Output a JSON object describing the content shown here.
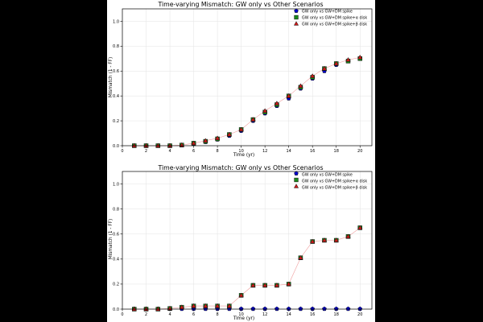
{
  "figure": {
    "background": "#ffffff",
    "outer_background": "#000000"
  },
  "colors": {
    "series": [
      "#0000cc",
      "#1a8a1a",
      "#cc1a1a"
    ],
    "edge": "#111111",
    "grid": "#e3e3e3",
    "line": "#f0a0a0"
  },
  "chart_data": [
    {
      "type": "scatter",
      "title": "Time-varying Mismatch: GW only vs Other Scenarios",
      "xlabel": "Time (yr)",
      "ylabel": "Mismatch (1 - FF)",
      "xlim": [
        0,
        21
      ],
      "ylim": [
        0,
        1.1
      ],
      "xticks": [
        0,
        2,
        4,
        6,
        8,
        10,
        12,
        14,
        16,
        18,
        20
      ],
      "yticks": [
        0.0,
        0.2,
        0.4,
        0.6,
        0.8,
        1.0
      ],
      "grid": true,
      "legend_position": "top-right",
      "x": [
        1,
        2,
        3,
        4,
        5,
        6,
        7,
        8,
        9,
        10,
        11,
        12,
        13,
        14,
        15,
        16,
        17,
        18,
        19,
        20
      ],
      "series": [
        {
          "name": "GW only vs GW+DM spike",
          "marker": "pentagon",
          "values": [
            0.0,
            0.0,
            0.0,
            0.0,
            0.005,
            0.015,
            0.03,
            0.05,
            0.08,
            0.12,
            0.2,
            0.26,
            0.32,
            0.38,
            0.46,
            0.54,
            0.6,
            0.65,
            0.68,
            0.7
          ]
        },
        {
          "name": "GW only vs GW+DM spike+α disk",
          "marker": "square",
          "values": [
            0.0,
            0.0,
            0.0,
            0.0,
            0.005,
            0.02,
            0.035,
            0.055,
            0.09,
            0.13,
            0.21,
            0.27,
            0.33,
            0.4,
            0.47,
            0.55,
            0.62,
            0.66,
            0.68,
            0.7
          ]
        },
        {
          "name": "GW only vs GW+DM spike+β disk",
          "marker": "triangle",
          "values": [
            0.0,
            0.0,
            0.0,
            0.0,
            0.005,
            0.02,
            0.04,
            0.06,
            0.09,
            0.13,
            0.21,
            0.28,
            0.34,
            0.4,
            0.48,
            0.56,
            0.62,
            0.66,
            0.69,
            0.71
          ]
        }
      ]
    },
    {
      "type": "scatter",
      "title": "Time-varying Mismatch: GW only vs Other Scenarios",
      "xlabel": "Time (yr)",
      "ylabel": "Mismatch (1 - FF)",
      "xlim": [
        0,
        21
      ],
      "ylim": [
        0,
        1.1
      ],
      "xticks": [
        0,
        2,
        4,
        6,
        8,
        10,
        12,
        14,
        16,
        18,
        20
      ],
      "yticks": [
        0.0,
        0.2,
        0.4,
        0.6,
        0.8,
        1.0
      ],
      "grid": true,
      "legend_position": "top-right",
      "x": [
        1,
        2,
        3,
        4,
        5,
        6,
        7,
        8,
        9,
        10,
        11,
        12,
        13,
        14,
        15,
        16,
        17,
        18,
        19,
        20
      ],
      "series": [
        {
          "name": "GW only vs GW+DM spike",
          "marker": "pentagon",
          "values": [
            0.002,
            0.002,
            0.002,
            0.002,
            0.002,
            0.002,
            0.002,
            0.002,
            0.002,
            0.002,
            0.002,
            0.002,
            0.002,
            0.002,
            0.002,
            0.002,
            0.002,
            0.002,
            0.002,
            0.002
          ]
        },
        {
          "name": "GW only vs GW+DM spike+α disk",
          "marker": "square",
          "values": [
            0.0,
            0.0,
            0.0,
            0.005,
            0.015,
            0.025,
            0.025,
            0.025,
            0.025,
            0.11,
            0.19,
            0.19,
            0.19,
            0.2,
            0.41,
            0.54,
            0.55,
            0.55,
            0.58,
            0.65
          ]
        },
        {
          "name": "GW only vs GW+DM spike+β disk",
          "marker": "triangle",
          "values": [
            0.0,
            0.0,
            0.0,
            0.005,
            0.015,
            0.025,
            0.025,
            0.025,
            0.025,
            0.11,
            0.19,
            0.19,
            0.19,
            0.2,
            0.41,
            0.54,
            0.55,
            0.55,
            0.58,
            0.65
          ]
        }
      ]
    }
  ]
}
